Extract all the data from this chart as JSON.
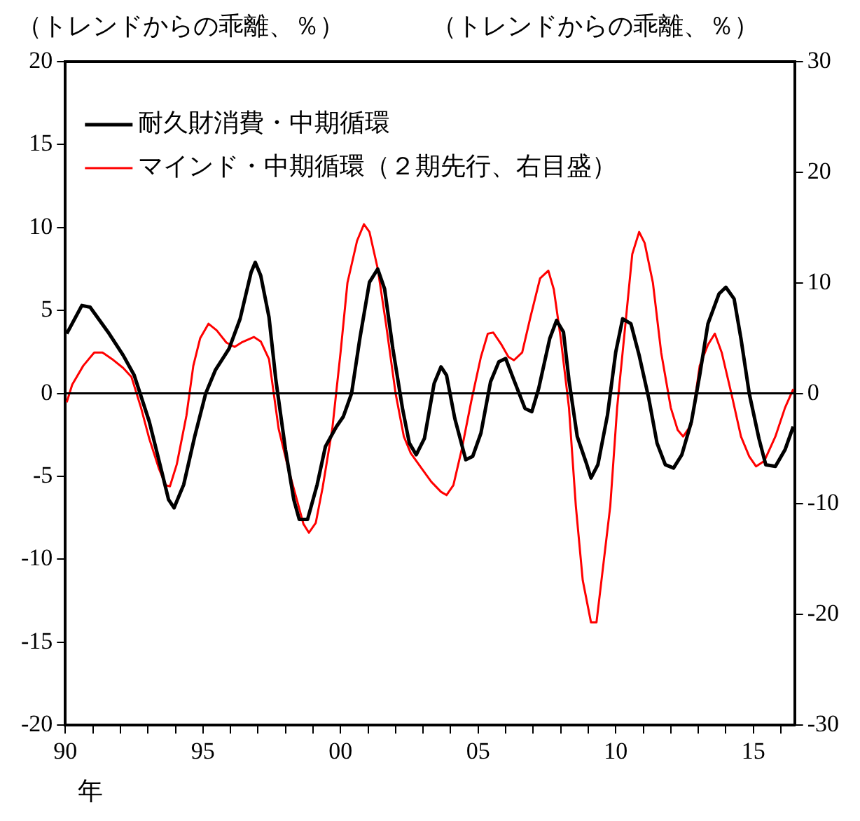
{
  "chart_data": {
    "type": "line",
    "ylabel": "（トレンドからの乖離、％）",
    "y2label": "（トレンドからの乖離、％）",
    "xlabel": "年",
    "xlim": [
      1990,
      2016.5
    ],
    "xticks": [
      {
        "value": 1990,
        "label": "90"
      },
      {
        "value": 1991,
        "label": null
      },
      {
        "value": 1992,
        "label": null
      },
      {
        "value": 1993,
        "label": null
      },
      {
        "value": 1994,
        "label": null
      },
      {
        "value": 1995,
        "label": "95"
      },
      {
        "value": 1996,
        "label": null
      },
      {
        "value": 1997,
        "label": null
      },
      {
        "value": 1998,
        "label": null
      },
      {
        "value": 1999,
        "label": null
      },
      {
        "value": 2000,
        "label": "00"
      },
      {
        "value": 2001,
        "label": null
      },
      {
        "value": 2002,
        "label": null
      },
      {
        "value": 2003,
        "label": null
      },
      {
        "value": 2004,
        "label": null
      },
      {
        "value": 2005,
        "label": "05"
      },
      {
        "value": 2006,
        "label": null
      },
      {
        "value": 2007,
        "label": null
      },
      {
        "value": 2008,
        "label": null
      },
      {
        "value": 2009,
        "label": null
      },
      {
        "value": 2010,
        "label": "10"
      },
      {
        "value": 2011,
        "label": null
      },
      {
        "value": 2012,
        "label": null
      },
      {
        "value": 2013,
        "label": null
      },
      {
        "value": 2014,
        "label": null
      },
      {
        "value": 2015,
        "label": "15"
      },
      {
        "value": 2016,
        "label": null
      }
    ],
    "ylim": [
      -20,
      20
    ],
    "yticks": [
      -20,
      -15,
      -10,
      -5,
      0,
      5,
      10,
      15,
      20
    ],
    "y2lim": [
      -30,
      30
    ],
    "y2ticks": [
      -30,
      -20,
      -10,
      0,
      10,
      20,
      30
    ],
    "grid": false,
    "legend": "top left",
    "marker": "none",
    "line_style": "solid",
    "ref_lines": [
      {
        "axis": "y",
        "value": 0,
        "color": "#000000"
      }
    ],
    "series": [
      {
        "name": "耐久財消費・中期循環",
        "color": "#000000",
        "x": [
          1990.05,
          1990.6,
          1990.9,
          1991.55,
          1992.1,
          1992.5,
          1993.05,
          1993.5,
          1993.75,
          1993.95,
          1994.3,
          1994.7,
          1995.1,
          1995.45,
          1995.95,
          1996.35,
          1996.75,
          1996.9,
          1997.1,
          1997.4,
          1997.65,
          1998.0,
          1998.3,
          1998.5,
          1998.8,
          1999.15,
          1999.45,
          1999.85,
          2000.1,
          2000.4,
          2000.7,
          2001.05,
          2001.35,
          2001.6,
          2001.9,
          2002.25,
          2002.5,
          2002.75,
          2003.05,
          2003.4,
          2003.65,
          2003.85,
          2004.15,
          2004.55,
          2004.8,
          2005.1,
          2005.45,
          2005.75,
          2006.0,
          2006.3,
          2006.7,
          2006.95,
          2007.2,
          2007.6,
          2007.85,
          2008.1,
          2008.3,
          2008.6,
          2008.95,
          2009.1,
          2009.35,
          2009.7,
          2010.0,
          2010.25,
          2010.55,
          2010.85,
          2011.2,
          2011.5,
          2011.8,
          2012.1,
          2012.4,
          2012.75,
          2013.05,
          2013.35,
          2013.75,
          2014.0,
          2014.3,
          2014.55,
          2014.85,
          2015.2,
          2015.45,
          2015.8,
          2016.15,
          2016.45
        ],
        "values": [
          3.6,
          5.3,
          5.2,
          3.7,
          2.3,
          1.1,
          -1.7,
          -4.7,
          -6.4,
          -6.9,
          -5.5,
          -2.6,
          0,
          1.4,
          2.7,
          4.5,
          7.3,
          7.9,
          7.1,
          4.6,
          0.8,
          -3.4,
          -6.4,
          -7.6,
          -7.6,
          -5.5,
          -3.2,
          -2.0,
          -1.4,
          0,
          3.3,
          6.7,
          7.5,
          6.3,
          2.7,
          -0.9,
          -3.0,
          -3.7,
          -2.7,
          0.6,
          1.6,
          1.1,
          -1.5,
          -4.0,
          -3.8,
          -2.4,
          0.7,
          1.9,
          2.1,
          0.8,
          -0.9,
          -1.1,
          0.3,
          3.3,
          4.4,
          3.7,
          0.8,
          -2.6,
          -4.3,
          -5.1,
          -4.3,
          -1.3,
          2.5,
          4.5,
          4.2,
          2.3,
          -0.3,
          -3.0,
          -4.3,
          -4.5,
          -3.7,
          -1.7,
          1.1,
          4.2,
          6.0,
          6.4,
          5.7,
          3.3,
          0,
          -2.7,
          -4.3,
          -4.4,
          -3.4,
          -2.0
        ]
      },
      {
        "name": "マインド・中期循環（２期先行、右目盛）",
        "color": "#ff0000",
        "axis": "y2",
        "x": [
          1990.05,
          1990.25,
          1990.65,
          1991.05,
          1991.35,
          1991.7,
          1992.1,
          1992.4,
          1992.75,
          1993.05,
          1993.4,
          1993.65,
          1993.8,
          1994.05,
          1994.4,
          1994.65,
          1994.9,
          1995.2,
          1995.5,
          1995.85,
          1996.15,
          1996.4,
          1996.85,
          1997.1,
          1997.4,
          1997.75,
          1998.1,
          1998.4,
          1998.65,
          1998.85,
          1999.1,
          1999.35,
          1999.7,
          2000.0,
          2000.25,
          2000.6,
          2000.85,
          2001.05,
          2001.35,
          2001.65,
          2002.0,
          2002.3,
          2002.55,
          2002.95,
          2003.3,
          2003.65,
          2003.85,
          2004.1,
          2004.4,
          2004.75,
          2005.1,
          2005.35,
          2005.55,
          2005.85,
          2006.1,
          2006.3,
          2006.6,
          2006.9,
          2007.25,
          2007.55,
          2007.75,
          2008.0,
          2008.3,
          2008.55,
          2008.8,
          2009.1,
          2009.3,
          2009.5,
          2009.8,
          2010.05,
          2010.4,
          2010.6,
          2010.85,
          2011.05,
          2011.35,
          2011.65,
          2012.0,
          2012.25,
          2012.45,
          2012.75,
          2013.05,
          2013.35,
          2013.6,
          2013.85,
          2014.2,
          2014.55,
          2014.85,
          2015.1,
          2015.4,
          2015.8,
          2016.15,
          2016.45
        ],
        "values": [
          -0.8,
          0.8,
          2.5,
          3.7,
          3.7,
          3.1,
          2.3,
          1.5,
          -1.3,
          -4.1,
          -6.8,
          -8.3,
          -8.4,
          -6.4,
          -2.0,
          2.5,
          5.0,
          6.3,
          5.7,
          4.6,
          4.2,
          4.6,
          5.1,
          4.7,
          3.1,
          -3.2,
          -6.8,
          -9.5,
          -11.8,
          -12.6,
          -11.7,
          -8.5,
          -3.2,
          3.7,
          10.0,
          13.8,
          15.3,
          14.6,
          11.3,
          6.3,
          0,
          -3.9,
          -5.4,
          -6.8,
          -8.0,
          -8.9,
          -9.2,
          -8.3,
          -5.1,
          -0.7,
          3.3,
          5.4,
          5.5,
          4.4,
          3.3,
          3.0,
          3.7,
          6.9,
          10.4,
          11.1,
          9.4,
          5.0,
          -1.3,
          -10.2,
          -16.9,
          -20.7,
          -20.7,
          -16.5,
          -10.2,
          -1.3,
          7.5,
          12.6,
          14.6,
          13.6,
          10.0,
          3.7,
          -1.3,
          -3.3,
          -3.9,
          -2.8,
          2.5,
          4.4,
          5.4,
          3.7,
          0,
          -3.9,
          -5.7,
          -6.6,
          -6.1,
          -3.9,
          -1.3,
          0.4
        ]
      }
    ]
  }
}
